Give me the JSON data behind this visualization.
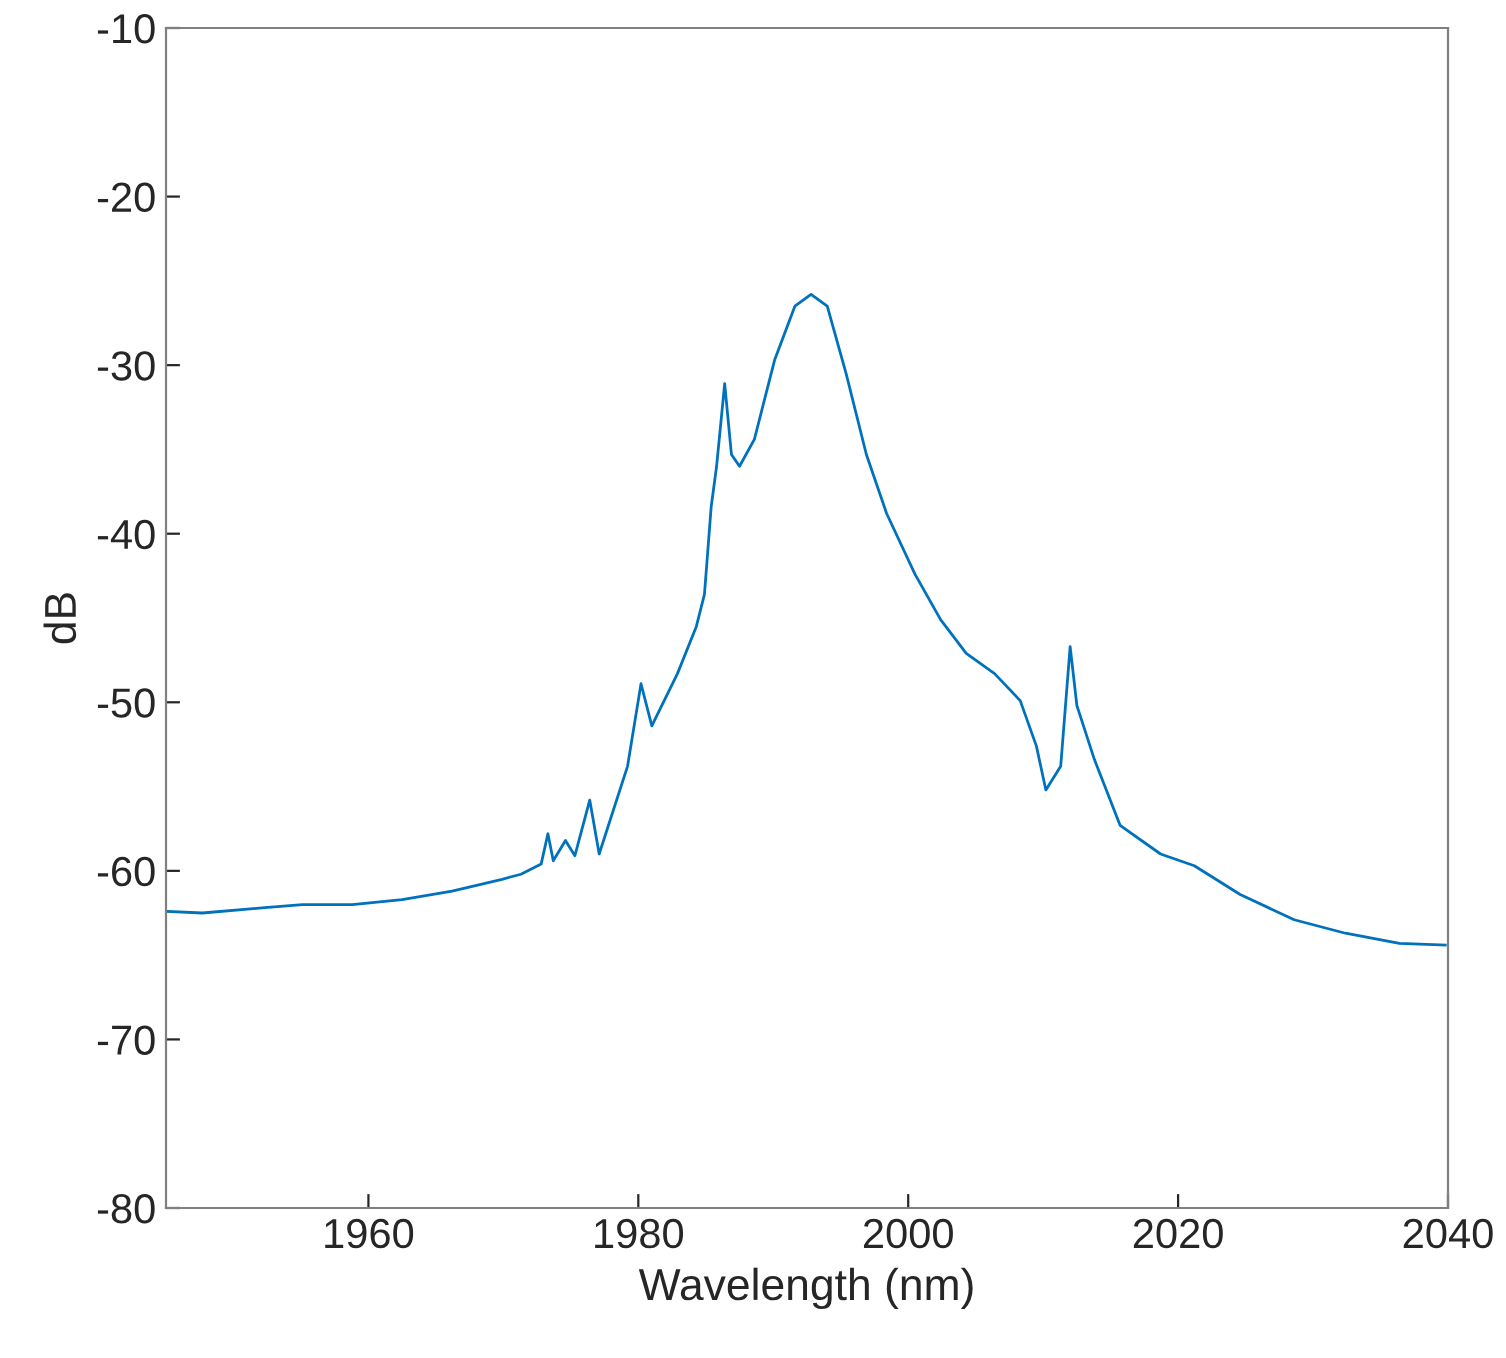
{
  "chart_data": {
    "type": "line",
    "xlabel": "Wavelength (nm)",
    "ylabel": "dB",
    "xlim": [
      1945,
      2040
    ],
    "xticks": [
      1960,
      1980,
      2000,
      2020,
      2040
    ],
    "ylim": [
      -80,
      -10
    ],
    "yticks": [
      -80,
      -70,
      -60,
      -50,
      -40,
      -30,
      -20,
      -10
    ],
    "grid": false,
    "legend": false,
    "marker": "none",
    "line_style": "solid",
    "series": [
      {
        "color": "#0072bd",
        "x": [
          1945.1,
          1947.7,
          1952.1,
          1955.1,
          1958.8,
          1962.5,
          1966.2,
          1969.9,
          1971.3,
          1972.8,
          1973.3,
          1973.7,
          1974.6,
          1975.3,
          1976.4,
          1977.1,
          1979.2,
          1980.2,
          1981.0,
          1982.9,
          1984.3,
          1984.9,
          1985.4,
          1985.8,
          1986.4,
          1986.9,
          1987.5,
          1988.6,
          1990.1,
          1991.6,
          1992.8,
          1994.0,
          1995.4,
          1996.9,
          1998.4,
          2000.5,
          2002.4,
          2004.3,
          2006.4,
          2008.3,
          2009.5,
          2010.2,
          2011.3,
          2012.0,
          2012.5,
          2013.8,
          2015.7,
          2018.7,
          2021.2,
          2024.6,
          2028.6,
          2032.4,
          2036.4,
          2039.8
        ],
        "values": [
          -62.4,
          -62.5,
          -62.2,
          -62.0,
          -62.0,
          -61.7,
          -61.2,
          -60.5,
          -60.2,
          -59.6,
          -57.8,
          -59.4,
          -58.2,
          -59.1,
          -55.8,
          -59.0,
          -53.8,
          -48.9,
          -51.4,
          -48.3,
          -45.5,
          -43.6,
          -38.4,
          -36.0,
          -31.1,
          -35.3,
          -36.0,
          -34.4,
          -29.7,
          -26.5,
          -25.8,
          -26.5,
          -30.5,
          -35.3,
          -38.8,
          -42.4,
          -45.1,
          -47.1,
          -48.3,
          -49.9,
          -52.6,
          -55.2,
          -53.8,
          -46.7,
          -50.2,
          -53.4,
          -57.3,
          -59.0,
          -59.7,
          -61.4,
          -62.9,
          -63.7,
          -64.3,
          -64.4
        ]
      }
    ]
  }
}
